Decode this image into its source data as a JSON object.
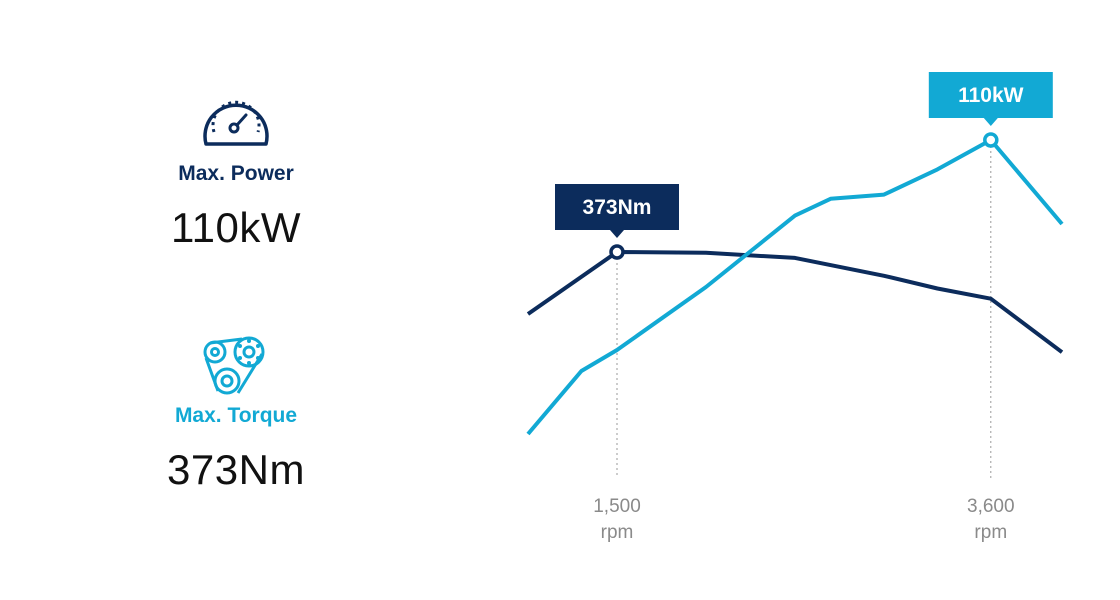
{
  "power": {
    "label": "Max. Power",
    "value": "110kW",
    "icon": "speedometer-icon",
    "color": "#0c2c5c"
  },
  "torque": {
    "label": "Max. Torque",
    "value": "373Nm",
    "icon": "belt-pulley-icon",
    "color": "#12a9d4"
  },
  "chart_data": {
    "type": "line",
    "xlabel": "",
    "ylabel": "",
    "x_ticks": [
      {
        "value": 1500,
        "label": "1,500",
        "unit": "rpm"
      },
      {
        "value": 3600,
        "label": "3,600",
        "unit": "rpm"
      }
    ],
    "xlim": [
      0,
      5000
    ],
    "grid": false,
    "series": [
      {
        "color": "#0c2c5c",
        "x": [
          1000,
          1500,
          2000,
          2500,
          3000,
          3300,
          3600,
          4000
        ],
        "y": [
          300,
          373,
          372,
          366,
          345,
          330,
          318,
          255
        ],
        "peak": {
          "x": 1500,
          "y": 373,
          "label": "373Nm"
        }
      },
      {
        "color": "#12a9d4",
        "x": [
          1000,
          1300,
          1500,
          2000,
          2500,
          2700,
          3000,
          3300,
          3600,
          4000
        ],
        "y": [
          40,
          55,
          60,
          75,
          92,
          96,
          97,
          103,
          110,
          90
        ],
        "peak": {
          "x": 3600,
          "y": 110,
          "label": "110kW"
        }
      }
    ]
  }
}
